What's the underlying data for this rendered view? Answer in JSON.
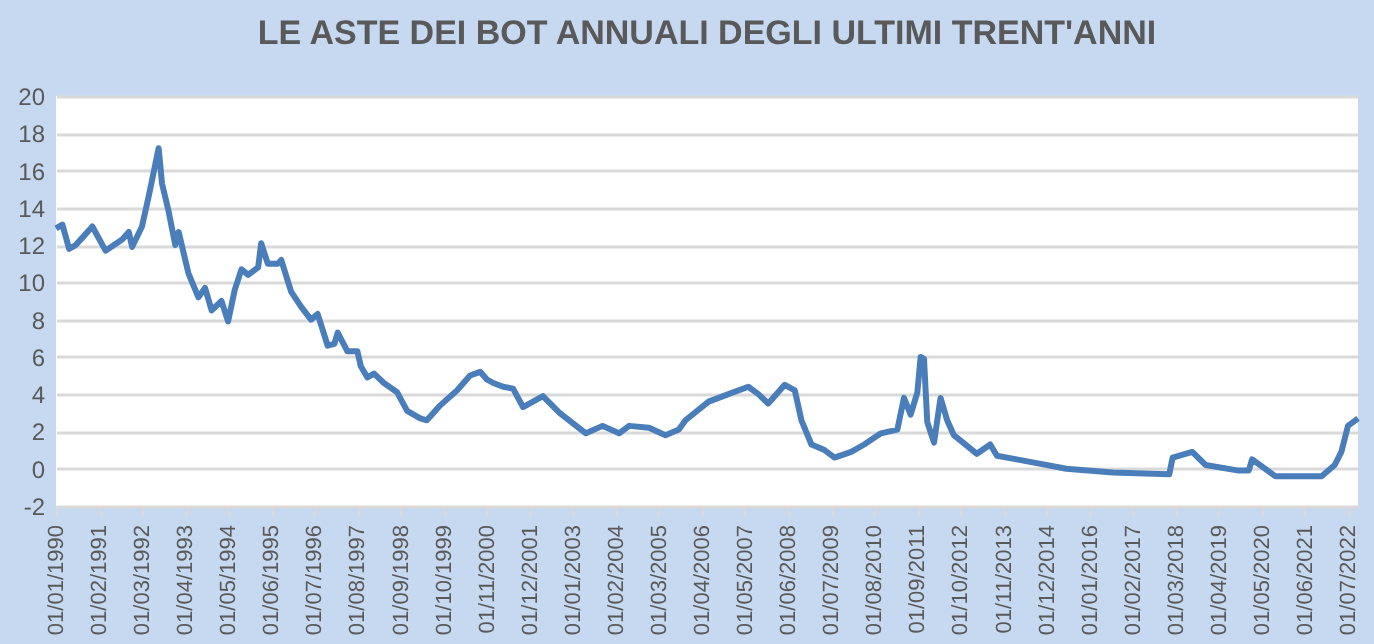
{
  "chart_data": {
    "type": "line",
    "title": "LE ASTE DEI BOT ANNUALI DEGLI ULTIMI TRENT'ANNI",
    "x": [
      "1990-01",
      "1990-03",
      "1990-05",
      "1990-07",
      "1990-09",
      "1990-12",
      "1991-04",
      "1991-09",
      "1991-11",
      "1991-12",
      "1992-03",
      "1992-05",
      "1992-08",
      "1992-09",
      "1992-11",
      "1993-01",
      "1993-02",
      "1993-05",
      "1993-08",
      "1993-10",
      "1993-12",
      "1994-03",
      "1994-05",
      "1994-07",
      "1994-09",
      "1994-11",
      "1995-02",
      "1995-03",
      "1995-05",
      "1995-08",
      "1995-09",
      "1995-12",
      "1996-03",
      "1996-06",
      "1996-08",
      "1996-11",
      "1997-01",
      "1997-02",
      "1997-05",
      "1997-08",
      "1997-09",
      "1997-11",
      "1998-01",
      "1998-04",
      "1998-08",
      "1998-11",
      "1999-03",
      "1999-05",
      "1999-09",
      "2000-02",
      "2000-06",
      "2000-09",
      "2000-11",
      "2001-01",
      "2001-04",
      "2001-07",
      "2001-10",
      "2002-04",
      "2002-09",
      "2003-02",
      "2003-05",
      "2003-10",
      "2004-03",
      "2004-06",
      "2004-12",
      "2005-05",
      "2005-09",
      "2005-11",
      "2006-06",
      "2006-12",
      "2007-06",
      "2007-09",
      "2007-12",
      "2008-05",
      "2008-08",
      "2008-10",
      "2009-01",
      "2009-05",
      "2009-08",
      "2010-01",
      "2010-05",
      "2010-10",
      "2011-03",
      "2011-05",
      "2011-07",
      "2011-09",
      "2011-10",
      "2011-11",
      "2011-12",
      "2012-02",
      "2012-04",
      "2012-06",
      "2012-08",
      "2013-03",
      "2013-07",
      "2013-09",
      "2014-03",
      "2014-09",
      "2015-06",
      "2016-08",
      "2018-01",
      "2018-02",
      "2018-08",
      "2018-12",
      "2019-10",
      "2020-01",
      "2020-02",
      "2020-09",
      "2021-11",
      "2022-03",
      "2022-05",
      "2022-07",
      "2022-10"
    ],
    "series": [
      {
        "color": "#4a7ebb",
        "values": [
          12.9,
          13.1,
          11.8,
          12.0,
          12.4,
          13.0,
          11.7,
          12.3,
          12.7,
          11.9,
          13.0,
          14.6,
          17.2,
          15.3,
          13.8,
          12.0,
          12.7,
          10.5,
          9.2,
          9.7,
          8.5,
          9.0,
          7.9,
          9.6,
          10.7,
          10.4,
          10.8,
          12.1,
          11.0,
          11.0,
          11.2,
          9.5,
          8.7,
          8.0,
          8.3,
          6.6,
          6.7,
          7.3,
          6.3,
          6.3,
          5.5,
          4.9,
          5.1,
          4.6,
          4.1,
          3.1,
          2.7,
          2.6,
          3.4,
          4.2,
          5.0,
          5.2,
          4.8,
          4.6,
          4.4,
          4.3,
          3.3,
          3.9,
          3.0,
          2.3,
          1.9,
          2.3,
          1.9,
          2.3,
          2.2,
          1.8,
          2.1,
          2.6,
          3.6,
          4.0,
          4.4,
          4.0,
          3.5,
          4.5,
          4.2,
          2.6,
          1.3,
          1.0,
          0.6,
          0.9,
          1.3,
          1.9,
          2.1,
          3.8,
          2.9,
          4.1,
          6.0,
          5.9,
          2.5,
          1.4,
          3.8,
          2.6,
          1.8,
          0.8,
          1.3,
          0.7,
          0.5,
          0.3,
          0.0,
          -0.2,
          -0.3,
          0.6,
          0.9,
          0.2,
          -0.1,
          -0.1,
          0.5,
          -0.4,
          -0.4,
          0.2,
          0.9,
          2.3,
          2.7
        ]
      }
    ],
    "xlim": [
      "1990-01-01",
      "2022-10-01"
    ],
    "xticks": [
      {
        "value": "1990-01-01",
        "label": "01/01/1990"
      },
      {
        "value": "1991-02-01",
        "label": "01/02/1991"
      },
      {
        "value": "1992-03-01",
        "label": "01/03/1992"
      },
      {
        "value": "1993-04-01",
        "label": "01/04/1993"
      },
      {
        "value": "1994-05-01",
        "label": "01/05/1994"
      },
      {
        "value": "1995-06-01",
        "label": "01/06/1995"
      },
      {
        "value": "1996-07-01",
        "label": "01/07/1996"
      },
      {
        "value": "1997-08-01",
        "label": "01/08/1997"
      },
      {
        "value": "1998-09-01",
        "label": "01/09/1998"
      },
      {
        "value": "1999-10-01",
        "label": "01/10/1999"
      },
      {
        "value": "2000-11-01",
        "label": "01/11/2000"
      },
      {
        "value": "2001-12-01",
        "label": "01/12/2001"
      },
      {
        "value": "2003-01-01",
        "label": "01/01/2003"
      },
      {
        "value": "2004-02-01",
        "label": "01/02/2004"
      },
      {
        "value": "2005-03-01",
        "label": "01/03/2005"
      },
      {
        "value": "2006-04-01",
        "label": "01/04/2006"
      },
      {
        "value": "2007-05-01",
        "label": "01/05/2007"
      },
      {
        "value": "2008-06-01",
        "label": "01/06/2008"
      },
      {
        "value": "2009-07-01",
        "label": "01/07/2009"
      },
      {
        "value": "2010-08-01",
        "label": "01/08/2010"
      },
      {
        "value": "2011-09-01",
        "label": "01/09/2011"
      },
      {
        "value": "2012-10-01",
        "label": "01/10/2012"
      },
      {
        "value": "2013-11-01",
        "label": "01/11/2013"
      },
      {
        "value": "2014-12-01",
        "label": "01/12/2014"
      },
      {
        "value": "2016-01-01",
        "label": "01/01/2016"
      },
      {
        "value": "2017-02-01",
        "label": "01/02/2017"
      },
      {
        "value": "2018-03-01",
        "label": "01/03/2018"
      },
      {
        "value": "2019-04-01",
        "label": "01/04/2019"
      },
      {
        "value": "2020-05-01",
        "label": "01/05/2020"
      },
      {
        "value": "2021-06-01",
        "label": "01/06/2021"
      },
      {
        "value": "2022-07-01",
        "label": "01/07/2022"
      }
    ],
    "ylim": [
      -2,
      20
    ],
    "yticks": [
      -2,
      0,
      2,
      4,
      6,
      8,
      10,
      12,
      14,
      16,
      18,
      20
    ],
    "grid": "y",
    "marker": "none",
    "line_style": "solid"
  }
}
